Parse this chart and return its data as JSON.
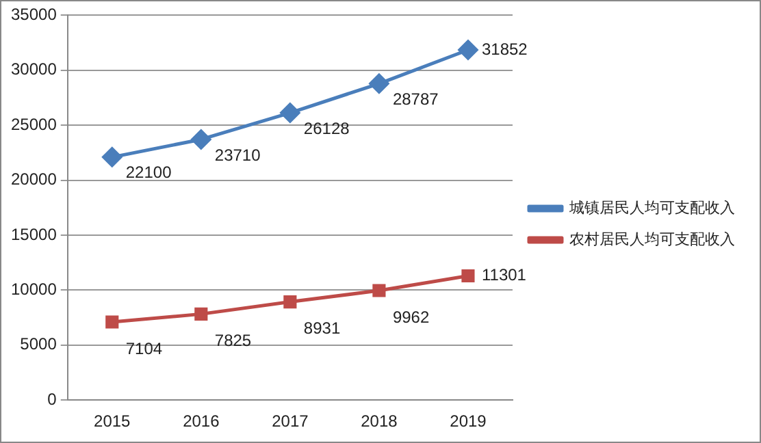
{
  "chart_data": {
    "type": "line",
    "categories": [
      "2015",
      "2016",
      "2017",
      "2018",
      "2019"
    ],
    "series": [
      {
        "name": "城镇居民人均可支配收入",
        "color": "#4a7ebb",
        "marker": "diamond",
        "values": [
          22100,
          23710,
          26128,
          28787,
          31852
        ]
      },
      {
        "name": "农村居民人均可支配收入",
        "color": "#be4b48",
        "marker": "square",
        "values": [
          7104,
          7825,
          8931,
          9962,
          11301
        ]
      }
    ],
    "ylim": [
      0,
      35000
    ],
    "yticks": [
      0,
      5000,
      10000,
      15000,
      20000,
      25000,
      30000,
      35000
    ],
    "grid": "y",
    "legend": "right",
    "data_labels": true,
    "line_style": "solid"
  }
}
